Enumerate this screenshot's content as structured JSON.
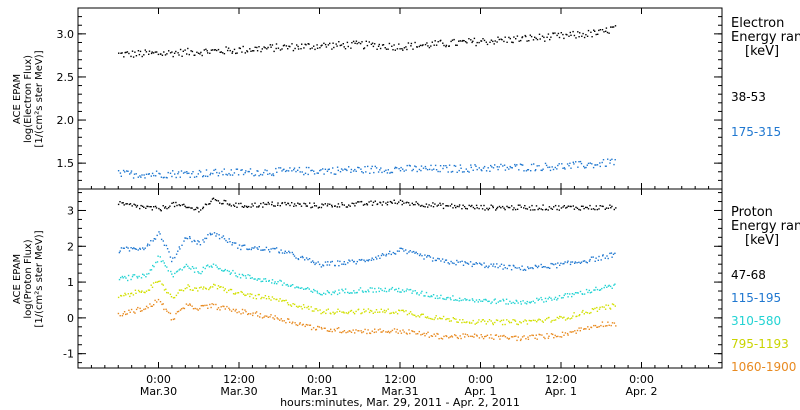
{
  "chart_data": [
    {
      "type": "scatter",
      "panel": "electron",
      "ylabel": [
        "ACE EPAM",
        "log(Electron Flux)",
        "[1/(cm²s ster MeV)]"
      ],
      "ylim": [
        1.2,
        3.3
      ],
      "yticks": [
        "1.5",
        "2.0",
        "2.5",
        "3.0"
      ],
      "ytick_values": [
        1.5,
        2.0,
        2.5,
        3.0
      ],
      "legend_title": [
        "Electron",
        "Energy ranges",
        "[keV]"
      ],
      "series": [
        {
          "name": "38-53",
          "color": "#000000",
          "marker": "dot",
          "x": [
            -6,
            0,
            6,
            12,
            18,
            24,
            30,
            36,
            42,
            48,
            54,
            60,
            66,
            68
          ],
          "y": [
            2.77,
            2.78,
            2.8,
            2.82,
            2.85,
            2.87,
            2.88,
            2.86,
            2.89,
            2.92,
            2.95,
            2.98,
            3.02,
            3.08
          ]
        },
        {
          "name": "175-315",
          "color": "#1f77d0",
          "marker": "dot",
          "x": [
            -6,
            0,
            6,
            12,
            18,
            24,
            30,
            36,
            42,
            48,
            54,
            60,
            66,
            68
          ],
          "y": [
            1.38,
            1.38,
            1.39,
            1.4,
            1.41,
            1.42,
            1.43,
            1.44,
            1.44,
            1.45,
            1.46,
            1.47,
            1.5,
            1.53
          ]
        }
      ]
    },
    {
      "type": "scatter",
      "panel": "proton",
      "ylabel": [
        "ACE EPAM",
        "log(Proton Flux)",
        "[1/(cm²s ster MeV)]"
      ],
      "ylim": [
        -1.4,
        3.6
      ],
      "yticks": [
        "-1",
        "0",
        "1",
        "2",
        "3"
      ],
      "ytick_values": [
        -1,
        0,
        1,
        2,
        3
      ],
      "legend_title": [
        "Proton",
        "Energy ranges",
        "[keV]"
      ],
      "series": [
        {
          "name": "47-68",
          "color": "#000000",
          "marker": "dot",
          "x": [
            -6,
            -2,
            0,
            2,
            4,
            6,
            8,
            12,
            18,
            24,
            30,
            36,
            42,
            48,
            54,
            60,
            66,
            68
          ],
          "y": [
            3.2,
            3.1,
            3.05,
            3.2,
            3.1,
            3.05,
            3.3,
            3.15,
            3.2,
            3.15,
            3.2,
            3.25,
            3.15,
            3.1,
            3.1,
            3.1,
            3.1,
            3.1
          ]
        },
        {
          "name": "115-195",
          "color": "#1f77d0",
          "marker": "dot",
          "x": [
            -6,
            -2,
            0,
            2,
            4,
            6,
            8,
            12,
            18,
            24,
            30,
            36,
            42,
            48,
            54,
            60,
            66,
            68
          ],
          "y": [
            1.9,
            2.0,
            2.4,
            1.6,
            2.3,
            2.1,
            2.4,
            2.0,
            1.9,
            1.5,
            1.6,
            1.9,
            1.6,
            1.5,
            1.4,
            1.5,
            1.7,
            1.8
          ]
        },
        {
          "name": "310-580",
          "color": "#22d3d3",
          "marker": "dot",
          "x": [
            -6,
            -2,
            0,
            2,
            4,
            6,
            8,
            12,
            18,
            24,
            30,
            36,
            42,
            48,
            54,
            60,
            66,
            68
          ],
          "y": [
            1.1,
            1.2,
            1.7,
            1.2,
            1.5,
            1.3,
            1.5,
            1.2,
            1.0,
            0.7,
            0.8,
            0.8,
            0.6,
            0.5,
            0.45,
            0.6,
            0.85,
            0.9
          ]
        },
        {
          "name": "795-1193",
          "color": "#d2e000",
          "marker": "dot",
          "x": [
            -6,
            -2,
            0,
            2,
            4,
            6,
            8,
            12,
            18,
            24,
            30,
            36,
            42,
            48,
            54,
            60,
            66,
            68
          ],
          "y": [
            0.6,
            0.8,
            1.0,
            0.6,
            0.9,
            0.8,
            0.9,
            0.7,
            0.5,
            0.2,
            0.2,
            0.2,
            0.0,
            -0.1,
            -0.1,
            0.0,
            0.3,
            0.35
          ]
        },
        {
          "name": "1060-1900",
          "color": "#e88a20",
          "marker": "dot",
          "x": [
            -6,
            -2,
            0,
            2,
            4,
            6,
            8,
            12,
            18,
            24,
            30,
            36,
            42,
            48,
            54,
            60,
            66,
            68
          ],
          "y": [
            0.1,
            0.3,
            0.5,
            0.0,
            0.35,
            0.3,
            0.35,
            0.2,
            0.0,
            -0.3,
            -0.35,
            -0.35,
            -0.5,
            -0.5,
            -0.55,
            -0.45,
            -0.15,
            -0.15
          ]
        }
      ]
    }
  ],
  "xaxis": {
    "range_hours": [
      -12,
      84
    ],
    "ticks": [
      {
        "hour": 0,
        "time": "0:00",
        "date": "Mar.30"
      },
      {
        "hour": 12,
        "time": "12:00",
        "date": "Mar.30"
      },
      {
        "hour": 24,
        "time": "0:00",
        "date": "Mar.31"
      },
      {
        "hour": 36,
        "time": "12:00",
        "date": "Mar.31"
      },
      {
        "hour": 48,
        "time": "0:00",
        "date": "Apr. 1"
      },
      {
        "hour": 60,
        "time": "12:00",
        "date": "Apr. 1"
      },
      {
        "hour": 72,
        "time": "0:00",
        "date": "Apr. 2"
      }
    ],
    "label": "hours:minutes, Mar. 29, 2011 - Apr. 2, 2011"
  }
}
